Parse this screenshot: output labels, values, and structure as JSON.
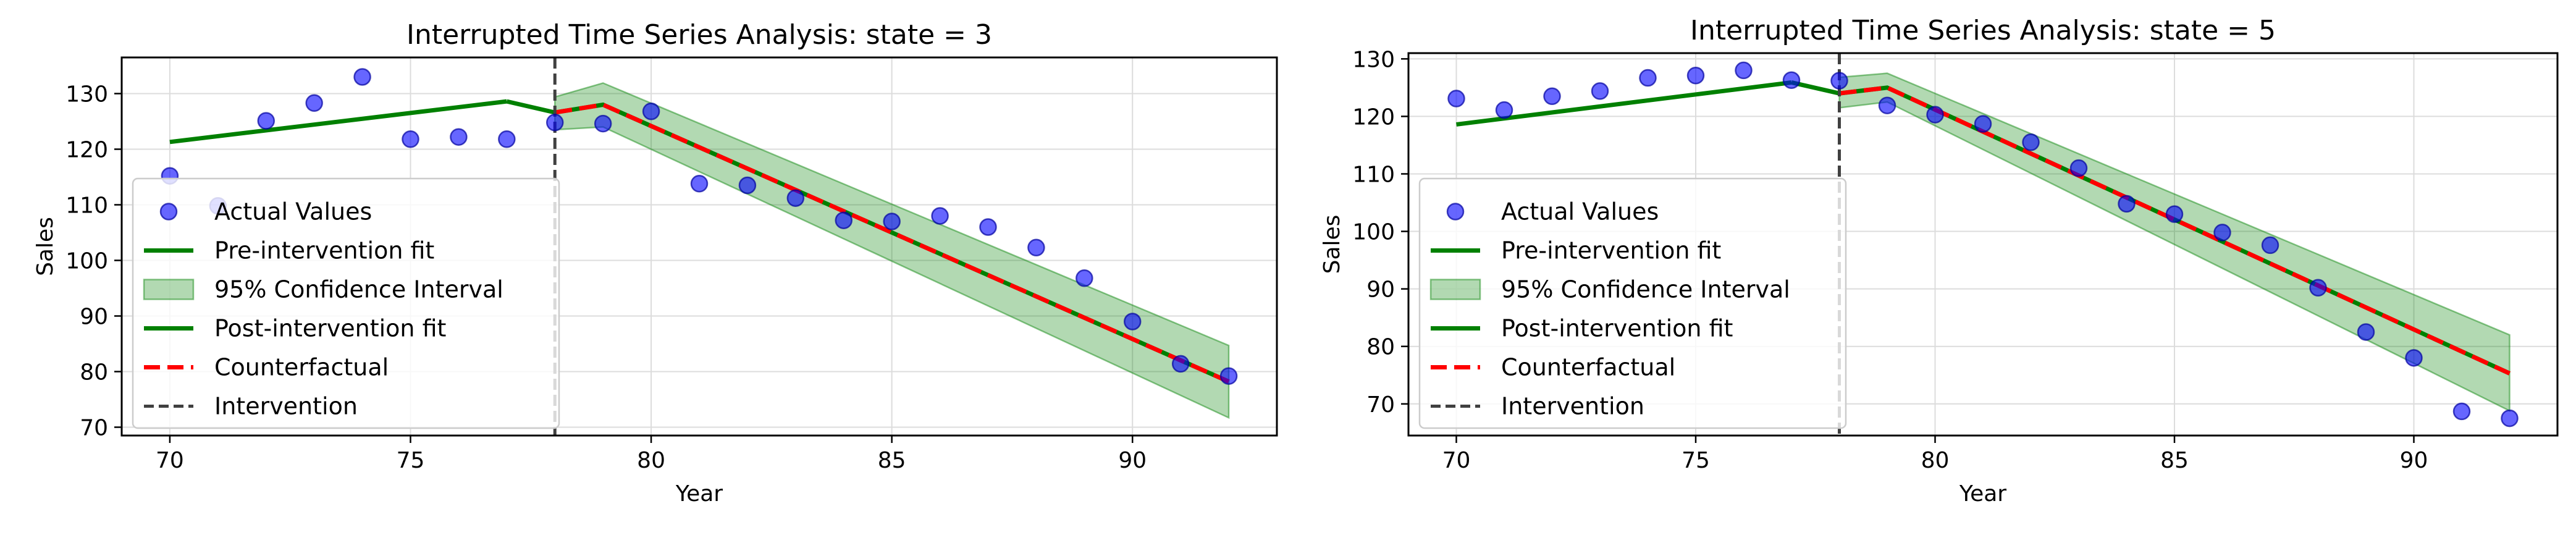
{
  "colors": {
    "points": "#0000ff",
    "fit": "#008000",
    "ci_fill": "#008000",
    "counterfactual": "#ff0000",
    "intervention": "#404040",
    "grid": "#dcdcdc",
    "axes": "#000000"
  },
  "chart_data": [
    {
      "type": "line",
      "title": "Interrupted Time Series Analysis: state = 3",
      "xlabel": "Year",
      "ylabel": "Sales",
      "xlim": [
        69,
        93
      ],
      "ylim": [
        68.5,
        136.5
      ],
      "xticks": [
        70,
        75,
        80,
        85,
        90
      ],
      "yticks": [
        70,
        80,
        90,
        100,
        110,
        120,
        130
      ],
      "grid": true,
      "legend": {
        "placement": "lower-left",
        "entries": [
          "Actual Values",
          "Pre-intervention fit",
          "95% Confidence Interval",
          "Post-intervention fit",
          "Counterfactual",
          "Intervention"
        ]
      },
      "intervention_x": 78,
      "actual": {
        "name": "Actual Values",
        "x": [
          70,
          71,
          72,
          73,
          74,
          75,
          76,
          77,
          78,
          79,
          80,
          81,
          82,
          83,
          84,
          85,
          86,
          87,
          88,
          89,
          90,
          91,
          92
        ],
        "y": [
          115.2,
          109.8,
          125.1,
          128.3,
          133.0,
          121.8,
          122.2,
          121.8,
          124.8,
          124.6,
          126.8,
          113.8,
          113.5,
          111.2,
          107.2,
          107.0,
          108.0,
          106.0,
          102.3,
          96.8,
          89.0,
          81.4,
          79.2
        ]
      },
      "pre_fit": {
        "name": "Pre-intervention fit",
        "x": [
          70,
          77
        ],
        "y": [
          121.3,
          128.6
        ]
      },
      "post_fit": {
        "name": "Post-intervention fit",
        "x": [
          77,
          78,
          79,
          92
        ],
        "y": [
          128.6,
          126.6,
          128.0,
          78.2
        ]
      },
      "counterfactual": {
        "name": "Counterfactual",
        "x": [
          78,
          79,
          92
        ],
        "y": [
          126.6,
          128.0,
          78.2
        ]
      },
      "ci": {
        "name": "95% Confidence Interval",
        "x": [
          78,
          79,
          92
        ],
        "lower": [
          123.5,
          124.0,
          71.7
        ],
        "upper": [
          129.4,
          131.9,
          84.7
        ]
      }
    },
    {
      "type": "line",
      "title": "Interrupted Time Series Analysis: state = 5",
      "xlabel": "Year",
      "ylabel": "Sales",
      "xlim": [
        69,
        93
      ],
      "ylim": [
        64.5,
        131.0
      ],
      "xticks": [
        70,
        75,
        80,
        85,
        90
      ],
      "yticks": [
        70,
        80,
        90,
        100,
        110,
        120,
        130
      ],
      "grid": true,
      "legend": {
        "placement": "lower-left",
        "entries": [
          "Actual Values",
          "Pre-intervention fit",
          "95% Confidence Interval",
          "Post-intervention fit",
          "Counterfactual",
          "Intervention"
        ]
      },
      "intervention_x": 78,
      "actual": {
        "name": "Actual Values",
        "x": [
          70,
          71,
          72,
          73,
          74,
          75,
          76,
          77,
          78,
          79,
          80,
          81,
          82,
          83,
          84,
          85,
          86,
          87,
          88,
          89,
          90,
          91,
          92
        ],
        "y": [
          123.1,
          121.1,
          123.5,
          124.4,
          126.7,
          127.1,
          128.0,
          126.3,
          126.2,
          121.9,
          120.3,
          118.7,
          115.5,
          111.0,
          104.8,
          103.0,
          99.8,
          97.6,
          90.2,
          82.5,
          78.0,
          68.7,
          67.5
        ]
      },
      "pre_fit": {
        "name": "Pre-intervention fit",
        "x": [
          70,
          77
        ],
        "y": [
          118.6,
          125.9
        ]
      },
      "post_fit": {
        "name": "Post-intervention fit",
        "x": [
          77,
          78,
          79,
          92
        ],
        "y": [
          125.9,
          124.0,
          125.0,
          75.3
        ]
      },
      "counterfactual": {
        "name": "Counterfactual",
        "x": [
          78,
          79,
          92
        ],
        "y": [
          124.0,
          125.0,
          75.3
        ]
      },
      "ci": {
        "name": "95% Confidence Interval",
        "x": [
          78,
          79,
          92
        ],
        "lower": [
          121.5,
          122.5,
          68.8
        ],
        "upper": [
          126.8,
          127.5,
          82.0
        ]
      }
    }
  ]
}
